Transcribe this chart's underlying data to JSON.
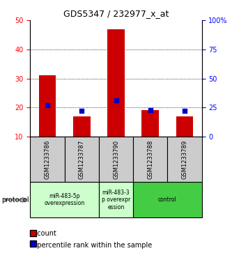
{
  "title": "GDS5347 / 232977_x_at",
  "samples": [
    "GSM1233786",
    "GSM1233787",
    "GSM1233790",
    "GSM1233788",
    "GSM1233789"
  ],
  "count_values": [
    31,
    17,
    47,
    19,
    17
  ],
  "percentile_values": [
    27,
    22,
    31,
    23,
    22
  ],
  "ylim_left": [
    10,
    50
  ],
  "ylim_right": [
    0,
    100
  ],
  "yticks_left": [
    10,
    20,
    30,
    40,
    50
  ],
  "yticks_right": [
    0,
    25,
    50,
    75,
    100
  ],
  "ytick_labels_right": [
    "0",
    "25",
    "50",
    "75",
    "100%"
  ],
  "bar_color": "#cc0000",
  "marker_color": "#0000cc",
  "grid_yticks": [
    20,
    30,
    40
  ],
  "background_color": "#ffffff",
  "bar_bottom": 10,
  "group_defs": [
    {
      "start": 0,
      "end": 1,
      "label": "miR-483-5p\noverexpression",
      "color": "#ccffcc"
    },
    {
      "start": 2,
      "end": 2,
      "label": "miR-483-3\np overexpr\nession",
      "color": "#ccffcc"
    },
    {
      "start": 3,
      "end": 4,
      "label": "control",
      "color": "#44cc44"
    }
  ],
  "sample_box_color": "#cccccc",
  "title_fontsize": 9,
  "tick_fontsize": 7,
  "label_fontsize": 6,
  "sample_fontsize": 6
}
